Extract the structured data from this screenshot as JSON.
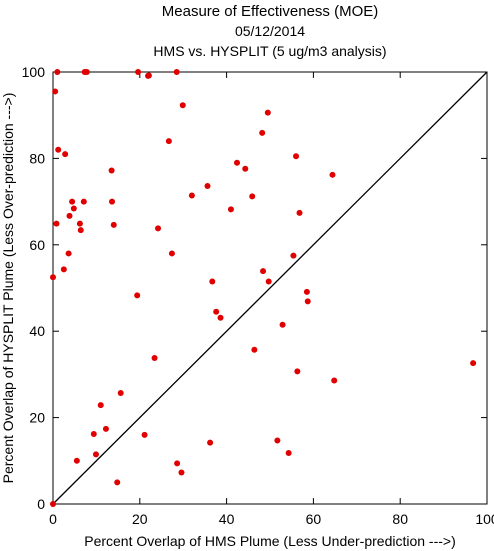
{
  "chart_data": {
    "type": "scatter",
    "title": "Measure of Effectiveness (MOE)",
    "subtitle_date": "05/12/2014",
    "subtitle_analysis": "HMS vs. HYSPLIT  (5 ug/m3 analysis)",
    "xlabel": "Percent Overlap of HMS Plume (Less Under-prediction --->)",
    "ylabel": "Percent Overlap of HYSPLIT Plume (Less Over-prediction --->)",
    "xlim": [
      0,
      100
    ],
    "ylim": [
      0,
      100
    ],
    "xticks": [
      "0",
      "20",
      "40",
      "60",
      "80",
      "100"
    ],
    "yticks": [
      "0",
      "20",
      "40",
      "60",
      "80",
      "100"
    ],
    "grid": false,
    "reference_line": "y = x",
    "point_color": "#e00000",
    "line_color": "#000000",
    "points": [
      [
        0,
        0
      ],
      [
        0,
        52.5
      ],
      [
        0.5,
        95.5
      ],
      [
        1,
        100
      ],
      [
        0.8,
        64.9
      ],
      [
        1.2,
        82
      ],
      [
        2.5,
        54.3
      ],
      [
        2.8,
        81
      ],
      [
        3.6,
        58
      ],
      [
        3.8,
        66.7
      ],
      [
        4.4,
        70
      ],
      [
        4.8,
        68.4
      ],
      [
        5.5,
        10
      ],
      [
        6.2,
        64.9
      ],
      [
        6.4,
        63.4
      ],
      [
        7.1,
        70
      ],
      [
        7.3,
        100
      ],
      [
        7.8,
        100
      ],
      [
        9.4,
        16.2
      ],
      [
        9.9,
        11.5
      ],
      [
        11,
        22.9
      ],
      [
        12.2,
        17.4
      ],
      [
        13.5,
        77.2
      ],
      [
        13.6,
        70
      ],
      [
        14,
        64.6
      ],
      [
        14.8,
        5
      ],
      [
        15.6,
        25.7
      ],
      [
        19.4,
        48.3
      ],
      [
        19.6,
        100
      ],
      [
        21.1,
        16
      ],
      [
        21.9,
        99.1
      ],
      [
        22.1,
        99.2
      ],
      [
        23.4,
        33.8
      ],
      [
        24.2,
        63.8
      ],
      [
        26.7,
        84
      ],
      [
        27.4,
        58
      ],
      [
        28.5,
        100
      ],
      [
        28.6,
        9.4
      ],
      [
        29.6,
        7.3
      ],
      [
        29.9,
        92.3
      ],
      [
        32,
        71.4
      ],
      [
        35.6,
        73.6
      ],
      [
        36.2,
        14.2
      ],
      [
        36.7,
        51.5
      ],
      [
        37.6,
        44.5
      ],
      [
        38.6,
        43.1
      ],
      [
        41,
        68.2
      ],
      [
        42.4,
        79
      ],
      [
        44.3,
        77.6
      ],
      [
        45.9,
        71.2
      ],
      [
        46.4,
        35.7
      ],
      [
        48.2,
        85.9
      ],
      [
        48.4,
        53.9
      ],
      [
        49.5,
        90.6
      ],
      [
        49.7,
        51.5
      ],
      [
        51.7,
        14.7
      ],
      [
        52.9,
        41.5
      ],
      [
        54.3,
        11.8
      ],
      [
        55.4,
        57.5
      ],
      [
        56,
        80.5
      ],
      [
        56.3,
        30.7
      ],
      [
        56.8,
        67.4
      ],
      [
        58.5,
        49.1
      ],
      [
        58.7,
        46.9
      ],
      [
        64.4,
        76.2
      ],
      [
        64.8,
        28.6
      ],
      [
        96.8,
        32.6
      ]
    ]
  }
}
